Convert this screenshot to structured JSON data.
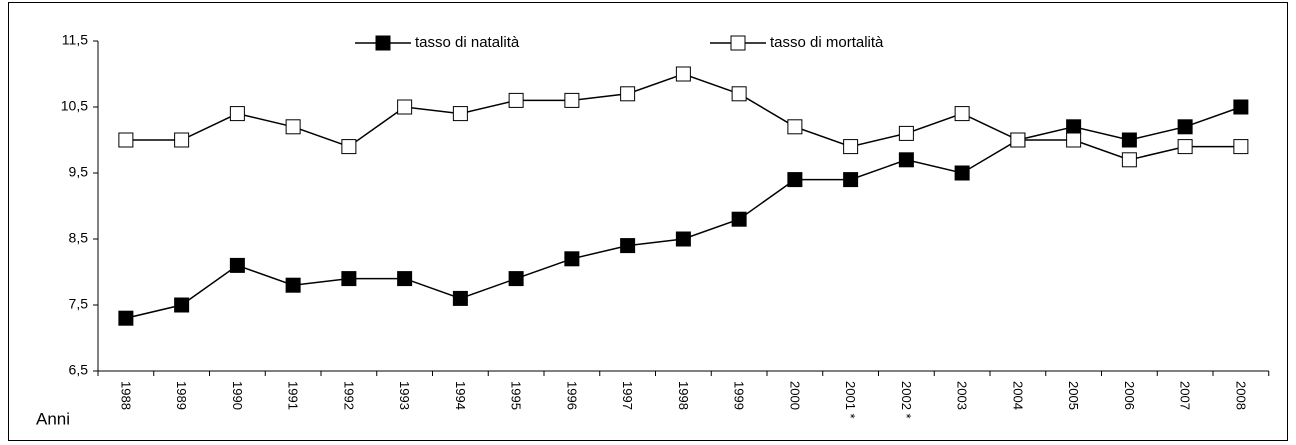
{
  "chart_data": {
    "type": "line",
    "x_label": "Anni",
    "categories": [
      "1988",
      "1989",
      "1990",
      "1991",
      "1992",
      "1993",
      "1994",
      "1995",
      "1996",
      "1997",
      "1998",
      "1999",
      "2000",
      "2001 *",
      "2002 *",
      "2003",
      "2004",
      "2005",
      "2006",
      "2007",
      "2008"
    ],
    "series": [
      {
        "name": "tasso di natalità",
        "color": "#000000",
        "marker_fill": "#000000",
        "values": [
          7.3,
          7.5,
          8.1,
          7.8,
          7.9,
          7.9,
          7.6,
          7.9,
          8.2,
          8.4,
          8.5,
          8.8,
          9.4,
          9.4,
          9.7,
          9.5,
          10.0,
          10.2,
          10.0,
          10.2,
          10.5
        ]
      },
      {
        "name": "tasso di mortalità",
        "color": "#000000",
        "marker_fill": "#ffffff",
        "values": [
          10.0,
          10.0,
          10.4,
          10.2,
          9.9,
          10.5,
          10.4,
          10.6,
          10.6,
          10.7,
          11.0,
          10.7,
          10.2,
          9.9,
          10.1,
          10.4,
          10.0,
          10.0,
          9.7,
          9.9,
          9.9
        ]
      }
    ],
    "ylim": [
      6.5,
      11.5
    ],
    "yticks": [
      {
        "value": 6.5,
        "label": "6,5"
      },
      {
        "value": 7.5,
        "label": "7,5"
      },
      {
        "value": 8.5,
        "label": "8,5"
      },
      {
        "value": 9.5,
        "label": "9,5"
      },
      {
        "value": 10.5,
        "label": "10,5"
      },
      {
        "value": 11.5,
        "label": "11,5"
      }
    ],
    "grid": false,
    "legend": "top"
  }
}
